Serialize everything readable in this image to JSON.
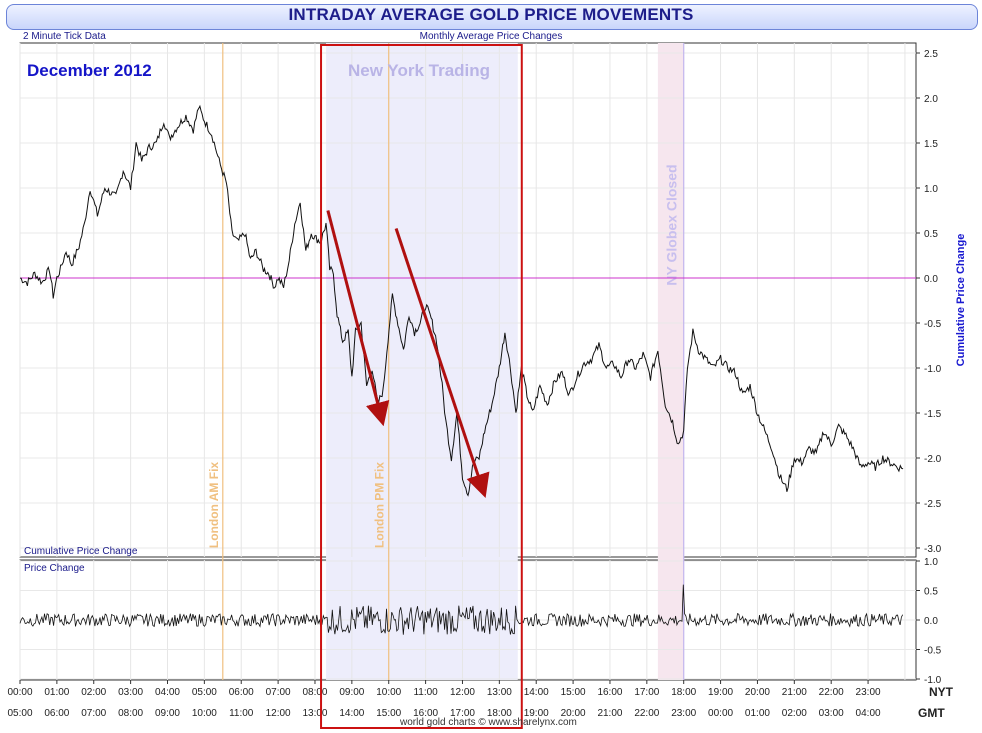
{
  "header": {
    "title": "INTRADAY AVERAGE GOLD PRICE MOVEMENTS",
    "left_note": "2 Minute Tick Data",
    "subtitle": "Monthly Average Price Changes",
    "month": "December 2012",
    "ny_session_label": "New York Trading",
    "credit": "world gold charts © www.sharelynx.com"
  },
  "panels": {
    "top_label": "Cumulative Price Change",
    "bottom_label": "Price Change",
    "right_axis_title": "Cumulative Price Change",
    "nyt_tag": "NYT",
    "gmt_tag": "GMT"
  },
  "colors": {
    "line": "#111111",
    "zero_line": "#cc33cc",
    "london_fix": "#f0c080",
    "ny_shade": "#ededfb",
    "ny_box": "#cc1111",
    "arrow": "#b01010",
    "globex_shade": "#f6e6ee",
    "globex_line": "#c4b6ee",
    "globex_text": "#c8bfee"
  },
  "chart_data": [
    {
      "type": "line",
      "name": "cumulative",
      "xlabel": "",
      "ylabel": "Cumulative Price Change",
      "x_unit": "NY hours",
      "ylim": [
        -3.0,
        2.5
      ],
      "yticks": [
        2.5,
        2.0,
        1.5,
        1.0,
        0.5,
        0.0,
        -0.5,
        -1.0,
        -1.5,
        -2.0,
        -2.5,
        -3.0
      ],
      "grid": true,
      "x_ticks_nyt": [
        "00:00",
        "01:00",
        "02:00",
        "03:00",
        "04:00",
        "05:00",
        "06:00",
        "07:00",
        "08:00",
        "09:00",
        "10:00",
        "11:00",
        "12:00",
        "13:00",
        "14:00",
        "15:00",
        "16:00",
        "17:00",
        "18:00",
        "19:00",
        "20:00",
        "21:00",
        "22:00",
        "23:00"
      ],
      "x_ticks_gmt": [
        "05:00",
        "06:00",
        "07:00",
        "08:00",
        "09:00",
        "10:00",
        "11:00",
        "12:00",
        "13:00",
        "14:00",
        "15:00",
        "16:00",
        "17:00",
        "18:00",
        "19:00",
        "20:00",
        "21:00",
        "22:00",
        "23:00",
        "00:00",
        "01:00",
        "02:00",
        "03:00",
        "04:00"
      ],
      "annotations": [
        {
          "label": "London AM Fix",
          "x": 5.5
        },
        {
          "label": "London PM Fix",
          "x": 10.0
        },
        {
          "label": "NY Globex Closed",
          "x": 18.0
        }
      ],
      "shaded_regions": [
        {
          "label": "New York Trading",
          "x_start": 8.3,
          "x_end": 13.5
        },
        {
          "label": "NY Globex Closed",
          "x_start": 17.3,
          "x_end": 18.0
        }
      ],
      "arrows": [
        {
          "from": [
            8.35,
            0.75
          ],
          "to": [
            9.8,
            -1.55
          ]
        },
        {
          "from": [
            10.2,
            0.55
          ],
          "to": [
            12.55,
            -2.35
          ]
        }
      ],
      "points": [
        [
          0.0,
          0.0
        ],
        [
          0.2,
          -0.05
        ],
        [
          0.4,
          0.05
        ],
        [
          0.6,
          -0.05
        ],
        [
          0.8,
          0.1
        ],
        [
          0.9,
          -0.2
        ],
        [
          1.0,
          0.0
        ],
        [
          1.1,
          0.1
        ],
        [
          1.25,
          0.3
        ],
        [
          1.4,
          0.15
        ],
        [
          1.6,
          0.35
        ],
        [
          1.75,
          0.6
        ],
        [
          1.9,
          1.0
        ],
        [
          2.1,
          0.7
        ],
        [
          2.3,
          1.0
        ],
        [
          2.6,
          0.9
        ],
        [
          2.8,
          1.2
        ],
        [
          3.0,
          1.0
        ],
        [
          3.15,
          1.5
        ],
        [
          3.3,
          1.3
        ],
        [
          3.5,
          1.45
        ],
        [
          3.7,
          1.5
        ],
        [
          3.9,
          1.75
        ],
        [
          4.05,
          1.55
        ],
        [
          4.3,
          1.7
        ],
        [
          4.5,
          1.8
        ],
        [
          4.7,
          1.65
        ],
        [
          4.85,
          1.9
        ],
        [
          5.0,
          1.75
        ],
        [
          5.2,
          1.6
        ],
        [
          5.4,
          1.3
        ],
        [
          5.6,
          1.05
        ],
        [
          5.75,
          0.5
        ],
        [
          5.9,
          0.4
        ],
        [
          6.1,
          0.5
        ],
        [
          6.25,
          0.2
        ],
        [
          6.4,
          0.3
        ],
        [
          6.6,
          0.1
        ],
        [
          6.75,
          0.05
        ],
        [
          6.9,
          -0.1
        ],
        [
          7.0,
          0.0
        ],
        [
          7.15,
          -0.1
        ],
        [
          7.3,
          0.2
        ],
        [
          7.45,
          0.6
        ],
        [
          7.6,
          0.85
        ],
        [
          7.75,
          0.3
        ],
        [
          7.9,
          0.5
        ],
        [
          8.0,
          0.45
        ],
        [
          8.15,
          0.4
        ],
        [
          8.3,
          0.6
        ],
        [
          8.4,
          0.1
        ],
        [
          8.5,
          0.05
        ],
        [
          8.6,
          -0.4
        ],
        [
          8.75,
          -0.7
        ],
        [
          8.9,
          -0.6
        ],
        [
          9.0,
          -1.1
        ],
        [
          9.1,
          -0.6
        ],
        [
          9.25,
          -0.5
        ],
        [
          9.4,
          -1.2
        ],
        [
          9.55,
          -1.0
        ],
        [
          9.7,
          -1.4
        ],
        [
          9.85,
          -1.25
        ],
        [
          9.95,
          -0.8
        ],
        [
          10.1,
          -0.2
        ],
        [
          10.25,
          -0.5
        ],
        [
          10.4,
          -0.8
        ],
        [
          10.55,
          -0.4
        ],
        [
          10.7,
          -0.6
        ],
        [
          10.85,
          -0.5
        ],
        [
          11.0,
          -0.3
        ],
        [
          11.15,
          -0.45
        ],
        [
          11.3,
          -0.7
        ],
        [
          11.45,
          -1.2
        ],
        [
          11.55,
          -1.6
        ],
        [
          11.7,
          -2.0
        ],
        [
          11.85,
          -1.5
        ],
        [
          12.0,
          -2.2
        ],
        [
          12.15,
          -2.4
        ],
        [
          12.3,
          -2.05
        ],
        [
          12.45,
          -2.0
        ],
        [
          12.6,
          -1.7
        ],
        [
          12.8,
          -1.4
        ],
        [
          13.0,
          -1.0
        ],
        [
          13.15,
          -0.6
        ],
        [
          13.3,
          -1.0
        ],
        [
          13.45,
          -1.5
        ],
        [
          13.6,
          -1.0
        ],
        [
          13.75,
          -1.3
        ],
        [
          13.9,
          -1.5
        ],
        [
          14.1,
          -1.2
        ],
        [
          14.3,
          -1.4
        ],
        [
          14.5,
          -1.15
        ],
        [
          14.7,
          -1.05
        ],
        [
          14.9,
          -1.3
        ],
        [
          15.1,
          -1.1
        ],
        [
          15.3,
          -0.95
        ],
        [
          15.5,
          -0.9
        ],
        [
          15.7,
          -0.75
        ],
        [
          15.9,
          -1.0
        ],
        [
          16.1,
          -0.95
        ],
        [
          16.3,
          -1.1
        ],
        [
          16.5,
          -0.9
        ],
        [
          16.7,
          -1.0
        ],
        [
          16.9,
          -0.85
        ],
        [
          17.1,
          -1.1
        ],
        [
          17.3,
          -0.8
        ],
        [
          17.5,
          -1.4
        ],
        [
          17.7,
          -1.6
        ],
        [
          17.85,
          -1.85
        ],
        [
          18.0,
          -1.7
        ],
        [
          18.1,
          -1.0
        ],
        [
          18.25,
          -0.6
        ],
        [
          18.4,
          -0.8
        ],
        [
          18.6,
          -0.9
        ],
        [
          18.8,
          -1.0
        ],
        [
          19.0,
          -0.9
        ],
        [
          19.2,
          -1.0
        ],
        [
          19.4,
          -1.05
        ],
        [
          19.6,
          -1.3
        ],
        [
          19.8,
          -1.2
        ],
        [
          20.0,
          -1.5
        ],
        [
          20.2,
          -1.7
        ],
        [
          20.4,
          -1.9
        ],
        [
          20.6,
          -2.2
        ],
        [
          20.8,
          -2.35
        ],
        [
          21.0,
          -2.0
        ],
        [
          21.2,
          -2.05
        ],
        [
          21.4,
          -1.9
        ],
        [
          21.6,
          -1.95
        ],
        [
          21.8,
          -1.7
        ],
        [
          22.0,
          -1.85
        ],
        [
          22.2,
          -1.65
        ],
        [
          22.4,
          -1.75
        ],
        [
          22.6,
          -1.9
        ],
        [
          22.8,
          -2.1
        ],
        [
          23.0,
          -2.05
        ],
        [
          23.2,
          -2.1
        ],
        [
          23.4,
          -2.0
        ],
        [
          23.6,
          -2.05
        ],
        [
          23.8,
          -2.1
        ],
        [
          23.95,
          -2.12
        ]
      ]
    },
    {
      "type": "line",
      "name": "price_change",
      "xlabel": "",
      "ylabel": "Price Change",
      "x_unit": "NY hours",
      "ylim": [
        -1.0,
        1.0
      ],
      "yticks": [
        1.0,
        0.5,
        0.0,
        -0.5,
        -1.0
      ],
      "grid": true,
      "noise_amplitude_normal": 0.11,
      "noise_amplitude_ny_session": 0.25,
      "spikes": [
        {
          "x": 18.0,
          "value": 0.6
        }
      ]
    }
  ]
}
